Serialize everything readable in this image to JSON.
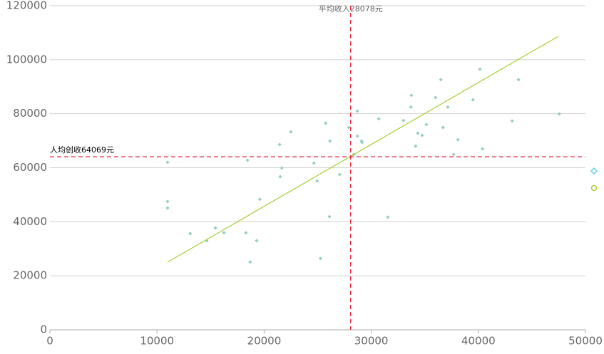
{
  "chart_data": {
    "type": "scatter",
    "xlim": [
      0,
      50000
    ],
    "xticks": [
      0,
      10000,
      20000,
      30000,
      40000,
      50000
    ],
    "ylim": [
      0,
      120000
    ],
    "yticks": [
      0,
      20000,
      40000,
      60000,
      80000,
      100000,
      120000
    ],
    "grid": true,
    "series": [
      {
        "color": "#8fcfb5",
        "x": [
          10985,
          10985,
          10985,
          13100,
          14650,
          15450,
          16250,
          18300,
          18450,
          18700,
          19300,
          19600,
          21450,
          21650,
          21500,
          22500,
          24650,
          24950,
          25250,
          25750,
          26150,
          26100,
          27050,
          27900,
          28350,
          28700,
          28700,
          29100,
          29150,
          30700,
          31550,
          33000,
          33700,
          33750,
          34150,
          34350,
          34750,
          35150,
          36000,
          36500,
          36700,
          37150,
          37700,
          38100,
          39500,
          40150,
          40400,
          43150,
          43750,
          47550
        ],
        "values": [
          62000,
          47500,
          45100,
          35600,
          33000,
          37700,
          35900,
          35900,
          62800,
          25100,
          33000,
          48300,
          68600,
          59900,
          56700,
          73300,
          61700,
          55100,
          26400,
          76500,
          69900,
          41900,
          57500,
          74900,
          64900,
          81000,
          71700,
          69900,
          69400,
          78100,
          41700,
          77500,
          82500,
          86800,
          68000,
          72800,
          72000,
          76000,
          86000,
          92600,
          74900,
          82500,
          64900,
          70400,
          85200,
          96500,
          67000,
          77300,
          92600,
          79900
        ]
      }
    ],
    "trend_line": {
      "color": "#a3cf2e",
      "x": [
        10985,
        47470
      ],
      "values": [
        25050,
        108650
      ]
    },
    "reference_lines": [
      {
        "axis": "x",
        "value": 28078,
        "label": "平均收入28078元",
        "color": "#e0102a"
      },
      {
        "axis": "y",
        "value": 64069,
        "label": "人均创收64069元",
        "color": "#e0102a"
      }
    ]
  }
}
